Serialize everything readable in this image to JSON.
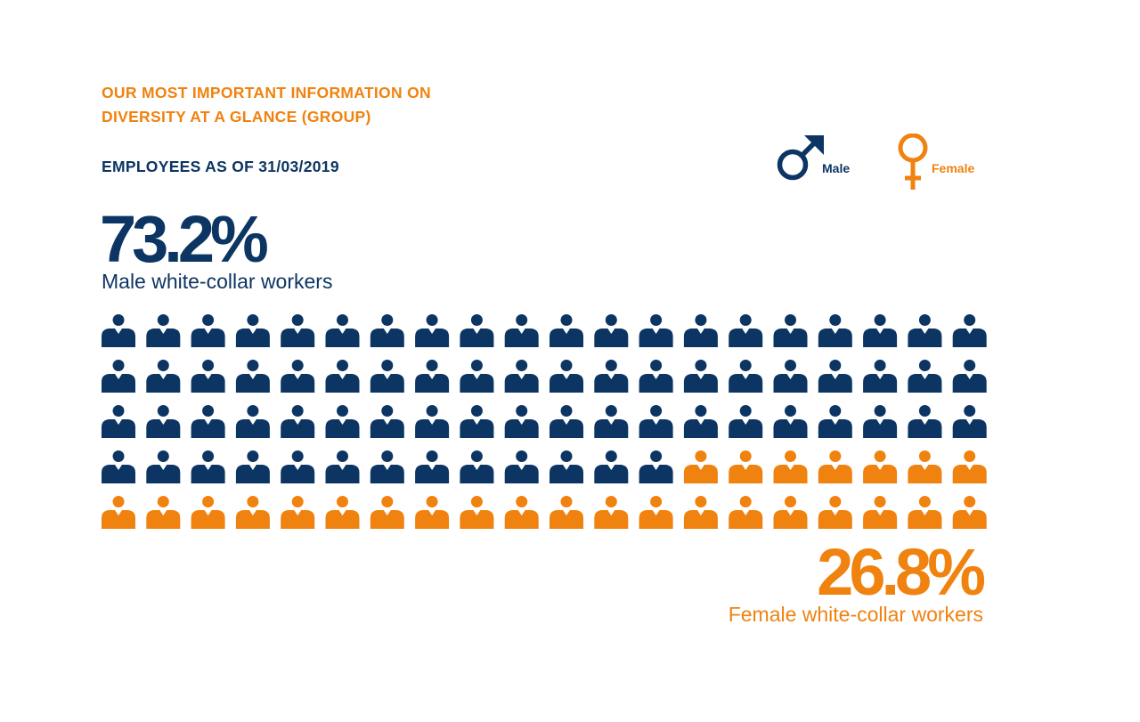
{
  "header": {
    "title_line1": "OUR MOST IMPORTANT INFORMATION ON",
    "title_line2": "DIVERSITY AT A GLANCE (GROUP)",
    "subtitle": "EMPLOYEES AS OF 31/03/2019"
  },
  "legend": {
    "male": {
      "label": "Male",
      "icon": "male-symbol-icon"
    },
    "female": {
      "label": "Female",
      "icon": "female-symbol-icon"
    }
  },
  "colors": {
    "male": "#0d3563",
    "female": "#f0820f"
  },
  "male_stat": {
    "percent": "73.2%",
    "label": "Male white-collar workers"
  },
  "female_stat": {
    "percent": "26.8%",
    "label": "Female white-collar workers"
  },
  "chart_data": {
    "type": "waffle",
    "title": "EMPLOYEES AS OF 31/03/2019",
    "rows": 5,
    "columns": 20,
    "total_icons": 100,
    "series": [
      {
        "name": "Male white-collar workers",
        "value": 73.2,
        "icon_count": 73
      },
      {
        "name": "Female white-collar workers",
        "value": 26.8,
        "icon_count": 27
      }
    ],
    "legend": [
      "Male",
      "Female"
    ],
    "legend_position": "top-right"
  }
}
